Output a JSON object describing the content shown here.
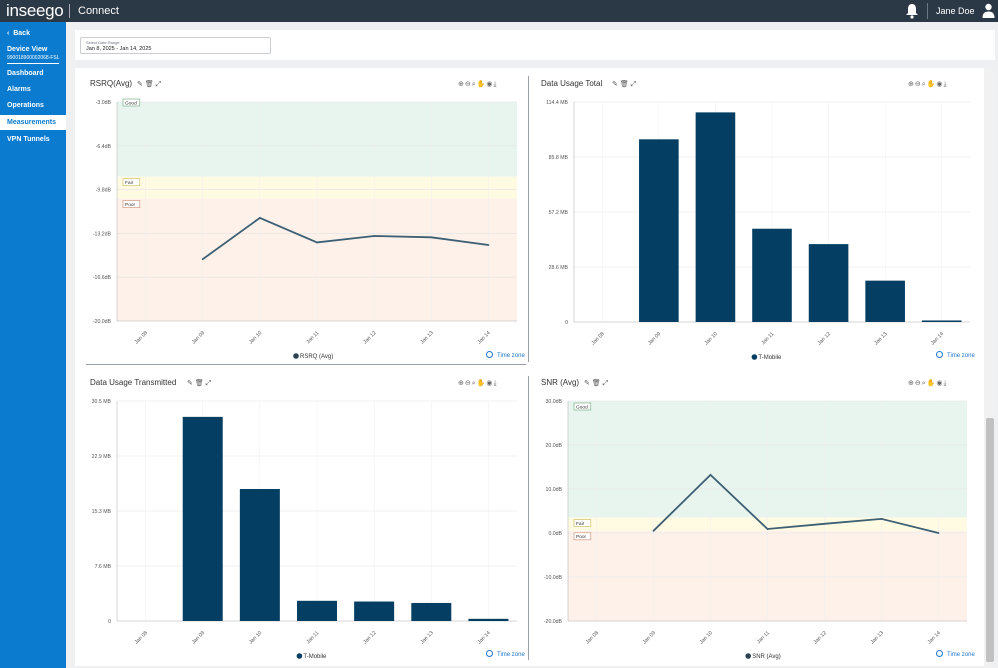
{
  "header": {
    "logo": "inseego",
    "app_name": "Connect",
    "user_name": "Jane Doe"
  },
  "sidebar": {
    "back_label": "Back",
    "device_title": "Device View",
    "device_id": "990018900002068-FSL",
    "items": [
      {
        "label": "Dashboard",
        "active": false
      },
      {
        "label": "Alarms",
        "active": false
      },
      {
        "label": "Operations",
        "active": false
      },
      {
        "label": "Measurements",
        "active": true
      },
      {
        "label": "VPN Tunnels",
        "active": false
      }
    ]
  },
  "filter": {
    "label": "Select Date Range",
    "value": "Jan 8, 2025 - Jan 14, 2025"
  },
  "timezone_label": "Time zone",
  "chart_data": [
    {
      "id": "rsrq",
      "type": "line",
      "title": "RSRQ(Avg)",
      "categories": [
        "Jan 08",
        "Jan 09",
        "Jan 10",
        "Jan 11",
        "Jan 12",
        "Jan 13",
        "Jan 14"
      ],
      "yticks": [
        "-3.0dB",
        "-6.4dB",
        "-9.8dB",
        "-13.2dB",
        "-16.6dB",
        "-20.0dB"
      ],
      "ylim": [
        -20,
        -3
      ],
      "series": [
        {
          "name": "RSRQ (Avg)",
          "values": [
            null,
            -15.2,
            -12.0,
            -13.9,
            -13.4,
            -13.5,
            -14.1
          ],
          "color": "#3d5f73"
        }
      ],
      "bands": [
        {
          "label": "Good",
          "from": -8.8,
          "to": -3,
          "color": "#e8f5ee",
          "border": "#6aa57a"
        },
        {
          "label": "Fair",
          "from": -10.5,
          "to": -8.8,
          "color": "#fffbe3",
          "border": "#c9b44a"
        },
        {
          "label": "Poor",
          "from": -20,
          "to": -10.5,
          "color": "#fdf1ea",
          "border": "#c98a6a"
        }
      ]
    },
    {
      "id": "usage_total",
      "type": "bar",
      "title": "Data Usage Total",
      "categories": [
        "Jan 08",
        "Jan 09",
        "Jan 10",
        "Jan 11",
        "Jan 12",
        "Jan 13",
        "Jan 14"
      ],
      "yticks": [
        "114.4 MB",
        "85.8 MB",
        "57.2 MB",
        "28.6 MB",
        "0"
      ],
      "ylim": [
        0,
        114.4
      ],
      "series": [
        {
          "name": "T-Mobile",
          "values": [
            0,
            95,
            109,
            48.5,
            40.5,
            21.5,
            0.8
          ],
          "color": "#053e63"
        }
      ]
    },
    {
      "id": "usage_tx",
      "type": "bar",
      "title": "Data Usage Transmitted",
      "categories": [
        "Jan 08",
        "Jan 09",
        "Jan 10",
        "Jan 11",
        "Jan 12",
        "Jan 13",
        "Jan 14"
      ],
      "yticks": [
        "30.5 MB",
        "22.9 MB",
        "15.3 MB",
        "7.6 MB",
        "0"
      ],
      "ylim": [
        0,
        30.5
      ],
      "series": [
        {
          "name": "T-Mobile",
          "values": [
            0,
            28.3,
            18.3,
            2.8,
            2.7,
            2.5,
            0.3
          ],
          "color": "#053e63"
        }
      ]
    },
    {
      "id": "snr",
      "type": "line",
      "title": "SNR (Avg)",
      "categories": [
        "Jan 08",
        "Jan 09",
        "Jan 10",
        "Jan 11",
        "Jan 12",
        "Jan 13",
        "Jan 14"
      ],
      "yticks": [
        "30.0dB",
        "20.0dB",
        "10.0dB",
        "0.0dB",
        "-10.0dB",
        "-20.0dB"
      ],
      "ylim": [
        -20,
        30
      ],
      "series": [
        {
          "name": "SNR (Avg)",
          "values": [
            null,
            0.5,
            13.2,
            0.9,
            2.1,
            3.2,
            0.0
          ],
          "color": "#3d5f73"
        }
      ],
      "bands": [
        {
          "label": "Good",
          "from": 3.5,
          "to": 30,
          "color": "#e8f5ee",
          "border": "#6aa57a"
        },
        {
          "label": "Fair",
          "from": 0.5,
          "to": 3.5,
          "color": "#fffbe3",
          "border": "#c9b44a"
        },
        {
          "label": "Poor",
          "from": -20,
          "to": 0.5,
          "color": "#fdf1ea",
          "border": "#c98a6a"
        }
      ]
    }
  ]
}
